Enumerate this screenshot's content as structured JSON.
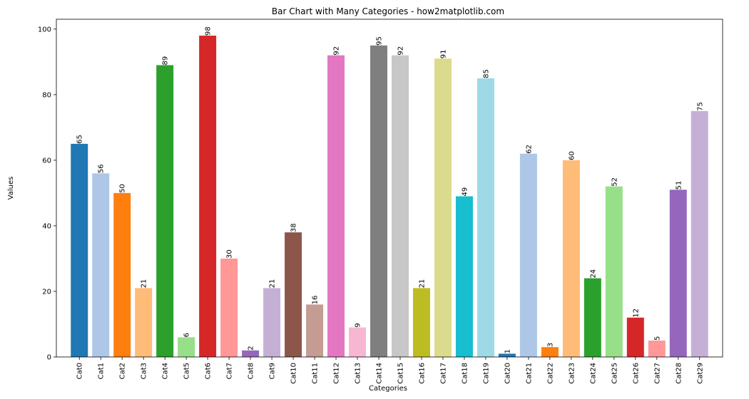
{
  "chart_data": {
    "type": "bar",
    "title": "Bar Chart with Many Categories - how2matplotlib.com",
    "xlabel": "Categories",
    "ylabel": "Values",
    "ylim": [
      0,
      100
    ],
    "yticks": [
      0,
      20,
      40,
      60,
      80,
      100
    ],
    "grid": false,
    "categories": [
      "Cat0",
      "Cat1",
      "Cat2",
      "Cat3",
      "Cat4",
      "Cat5",
      "Cat6",
      "Cat7",
      "Cat8",
      "Cat9",
      "Cat10",
      "Cat11",
      "Cat12",
      "Cat13",
      "Cat14",
      "Cat15",
      "Cat16",
      "Cat17",
      "Cat18",
      "Cat19",
      "Cat20",
      "Cat21",
      "Cat22",
      "Cat23",
      "Cat24",
      "Cat25",
      "Cat26",
      "Cat27",
      "Cat28",
      "Cat29"
    ],
    "values": [
      65,
      56,
      50,
      21,
      89,
      6,
      98,
      30,
      2,
      21,
      38,
      16,
      92,
      9,
      95,
      92,
      21,
      91,
      49,
      85,
      1,
      62,
      3,
      60,
      24,
      52,
      12,
      5,
      51,
      75
    ],
    "colors": [
      "#1f77b4",
      "#aec7e8",
      "#ff7f0e",
      "#ffbb78",
      "#2ca02c",
      "#98df8a",
      "#d62728",
      "#ff9896",
      "#9467bd",
      "#c5b0d5",
      "#8c564b",
      "#c49c94",
      "#e377c2",
      "#f7b6d2",
      "#7f7f7f",
      "#c7c7c7",
      "#bcbd22",
      "#dbdb8d",
      "#17becf",
      "#9edae5",
      "#1f77b4",
      "#aec7e8",
      "#ff7f0e",
      "#ffbb78",
      "#2ca02c",
      "#98df8a",
      "#d62728",
      "#ff9896",
      "#9467bd",
      "#c5b0d5"
    ]
  }
}
